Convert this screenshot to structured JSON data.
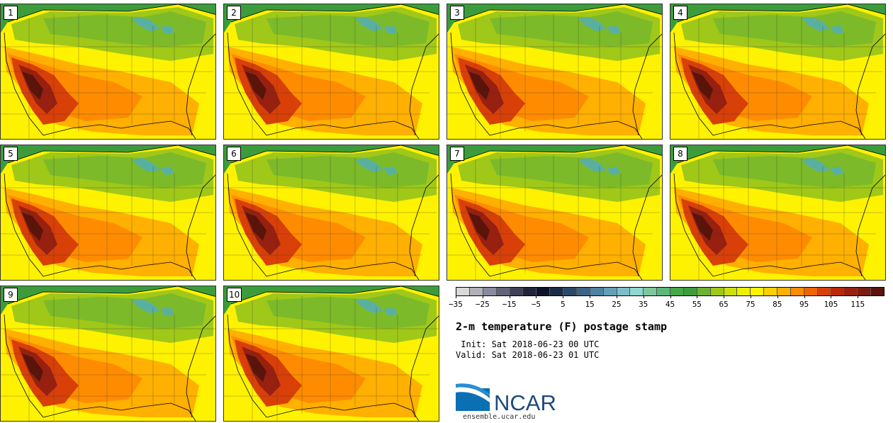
{
  "panels": [
    {
      "label": "1"
    },
    {
      "label": "2"
    },
    {
      "label": "3"
    },
    {
      "label": "4"
    },
    {
      "label": "5"
    },
    {
      "label": "6"
    },
    {
      "label": "7"
    },
    {
      "label": "8"
    },
    {
      "label": "9"
    },
    {
      "label": "10"
    }
  ],
  "colorbar": {
    "colors": [
      "#d9d9d9",
      "#b0b0b8",
      "#8a8a9c",
      "#646478",
      "#404058",
      "#22243a",
      "#0e1428",
      "#1c2c48",
      "#2c4868",
      "#3c6486",
      "#4e82a0",
      "#62a0b8",
      "#7cbec8",
      "#8ed8d0",
      "#7cc89a",
      "#5ab878",
      "#44a848",
      "#3c9c3c",
      "#6cb430",
      "#a0c818",
      "#cce008",
      "#eef000",
      "#fff200",
      "#ffd000",
      "#ffb000",
      "#ff8c00",
      "#f06400",
      "#d84008",
      "#b82808",
      "#982010",
      "#7a1c10",
      "#5a140a"
    ],
    "tick_labels": [
      "−35",
      "−25",
      "−15",
      "−5",
      "5",
      "15",
      "25",
      "35",
      "45",
      "55",
      "65",
      "75",
      "85",
      "95",
      "105",
      "115"
    ]
  },
  "title": "2-m temperature (F) postage stamp",
  "init_line": " Init: Sat 2018-06-23 00 UTC",
  "valid_line": "Valid: Sat 2018-06-23 01 UTC",
  "logo": {
    "text": "NCAR",
    "url": "ensemble.ucar.edu"
  }
}
